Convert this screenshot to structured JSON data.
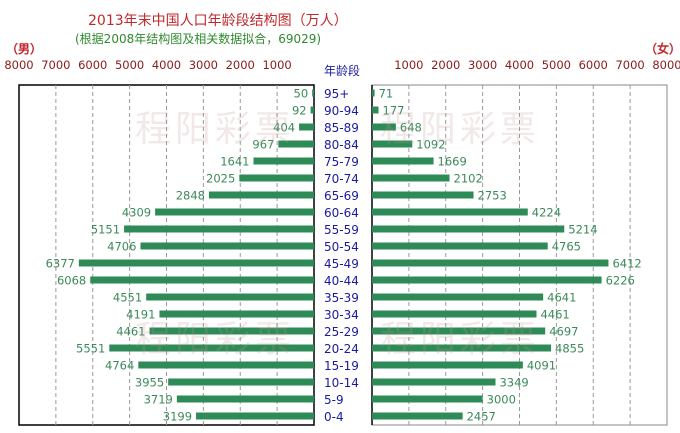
{
  "chart_data": {
    "type": "bar",
    "title": "2013年末中国人口年龄段结构图（万人）",
    "subtitle": "(根据2008年结构图及相关数据拟合，69029)",
    "category_header": "年龄段",
    "categories": [
      "95+",
      "90-94",
      "85-89",
      "80-84",
      "75-79",
      "70-74",
      "65-69",
      "60-64",
      "55-59",
      "50-54",
      "45-49",
      "40-44",
      "35-39",
      "30-34",
      "25-29",
      "20-24",
      "15-19",
      "10-14",
      "5-9",
      "0-4"
    ],
    "series": [
      {
        "name": "（男）",
        "side": "left",
        "values": [
          50,
          92,
          404,
          967,
          1641,
          2025,
          2848,
          4309,
          5151,
          4706,
          6377,
          6068,
          4551,
          4191,
          4461,
          5551,
          4764,
          3955,
          3719,
          3199
        ]
      },
      {
        "name": "（女）",
        "side": "right",
        "values": [
          71,
          177,
          648,
          1092,
          1669,
          2102,
          2753,
          4224,
          5214,
          4765,
          6412,
          6226,
          4641,
          4461,
          4697,
          4855,
          4091,
          3349,
          3000,
          2457
        ]
      }
    ],
    "xlim": [
      0,
      8000
    ],
    "ticks": [
      "1000",
      "2000",
      "3000",
      "4000",
      "5000",
      "6000",
      "7000",
      "8000"
    ],
    "grid": true,
    "bar_color": "#2e8b57",
    "watermark": "程阳彩票"
  }
}
